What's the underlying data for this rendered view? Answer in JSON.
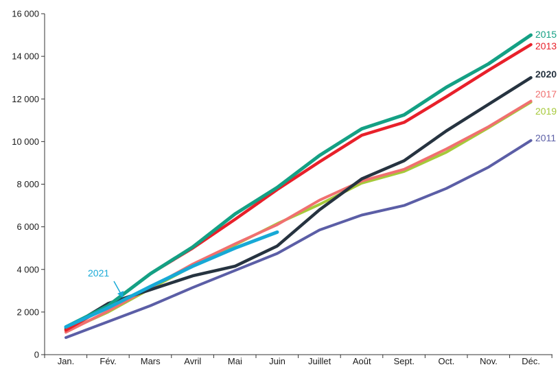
{
  "chart_data": {
    "type": "line",
    "title": "",
    "xlabel": "",
    "ylabel": "",
    "categories": [
      "Jan.",
      "Fév.",
      "Mars",
      "Avril",
      "Mai",
      "Juin",
      "Juillet",
      "Août",
      "Sept.",
      "Oct.",
      "Nov.",
      "Déc."
    ],
    "ylim": [
      0,
      16000
    ],
    "yticks": [
      0,
      2000,
      4000,
      6000,
      8000,
      10000,
      12000,
      14000,
      16000
    ],
    "ytick_labels": [
      "0",
      "2 000",
      "4 000",
      "6 000",
      "8 000",
      "10 000",
      "12 000",
      "14 000",
      "16 000"
    ],
    "grid": false,
    "legend": "direct labels at line ends",
    "series": [
      {
        "name": "2011",
        "color": "#5b5ea6",
        "values": [
          800,
          1550,
          2300,
          3150,
          3950,
          4750,
          5850,
          6550,
          7000,
          7800,
          8800,
          10050
        ]
      },
      {
        "name": "2019",
        "color": "#a6c93a",
        "values": [
          1100,
          2000,
          3100,
          4150,
          5150,
          6150,
          7050,
          8050,
          8600,
          9500,
          10650,
          11850
        ]
      },
      {
        "name": "2017",
        "color": "#f07070",
        "values": [
          1050,
          2050,
          3150,
          4250,
          5200,
          6100,
          7250,
          8150,
          8700,
          9650,
          10700,
          11900
        ]
      },
      {
        "name": "2020",
        "color": "#263340",
        "values": [
          1200,
          2400,
          3050,
          3700,
          4150,
          5100,
          6800,
          8250,
          9100,
          10500,
          11750,
          13000
        ]
      },
      {
        "name": "2013",
        "color": "#e8202a",
        "values": [
          1150,
          2300,
          3800,
          5000,
          6350,
          7750,
          9050,
          10300,
          10900,
          12100,
          13350,
          14550
        ]
      },
      {
        "name": "2015",
        "color": "#14a084",
        "values": [
          1300,
          2300,
          3800,
          5050,
          6600,
          7850,
          9350,
          10600,
          11250,
          12550,
          13650,
          15000
        ]
      },
      {
        "name": "2021",
        "color": "#17a9d6",
        "values": [
          1300,
          2200,
          3200,
          4150,
          5000,
          5750,
          null,
          null,
          null,
          null,
          null,
          null
        ]
      }
    ]
  }
}
